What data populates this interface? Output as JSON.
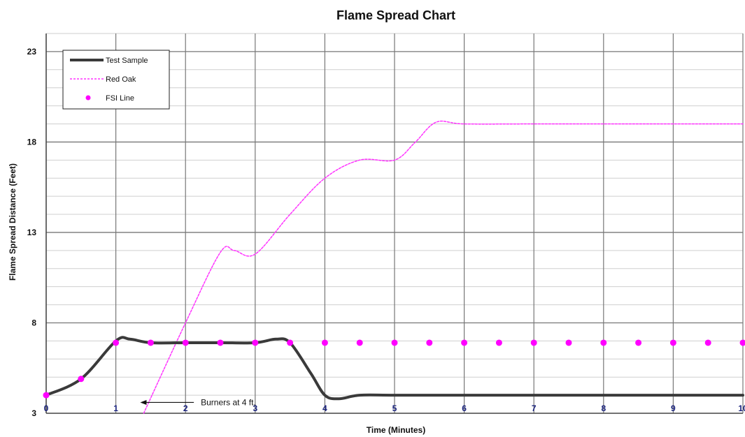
{
  "chart_data": {
    "type": "line",
    "title": "Flame Spread Chart",
    "xlabel": "Time (Minutes)",
    "ylabel": "Flame Spread Distance (Feet)",
    "xlim": [
      0,
      10
    ],
    "ylim": [
      3,
      24
    ],
    "x_ticks": [
      "0",
      "1",
      "2",
      "3",
      "4",
      "5",
      "6",
      "7",
      "8",
      "9",
      "10"
    ],
    "y_ticks": [
      "3",
      "8",
      "13",
      "18",
      "23"
    ],
    "grid": true,
    "legend_position": "top-left",
    "series": [
      {
        "name": "Test Sample",
        "style": "solid",
        "color": "#3a3a3a",
        "x": [
          0,
          0.5,
          1,
          1.2,
          1.5,
          2,
          2.5,
          3,
          3.3,
          3.5,
          3.8,
          4,
          4.2,
          4.5,
          5,
          6,
          7,
          8,
          9,
          10
        ],
        "y": [
          4.0,
          4.9,
          7.0,
          7.1,
          6.9,
          6.9,
          6.9,
          6.9,
          7.1,
          6.9,
          5.2,
          4.0,
          3.8,
          4.0,
          4.0,
          4.0,
          4.0,
          4.0,
          4.0,
          4.0
        ]
      },
      {
        "name": "Red Oak",
        "style": "dashed",
        "color": "#ff33ff",
        "x": [
          1.4,
          2,
          2.5,
          2.7,
          3,
          3.5,
          4,
          4.5,
          5,
          5.3,
          5.6,
          6,
          7,
          8,
          9,
          10
        ],
        "y": [
          3.0,
          8.0,
          11.9,
          12.0,
          11.8,
          14.0,
          16.0,
          17.0,
          17.0,
          18.0,
          19.1,
          19.0,
          19.0,
          19.0,
          19.0,
          19.0
        ]
      },
      {
        "name": "FSI Line",
        "style": "markers",
        "color": "#ff00ff",
        "x": [
          0,
          0.5,
          1,
          1.5,
          2,
          2.5,
          3,
          3.5,
          4,
          4.5,
          5,
          5.5,
          6,
          6.5,
          7,
          7.5,
          8,
          8.5,
          9,
          9.5,
          10
        ],
        "y": [
          4.0,
          4.9,
          6.9,
          6.9,
          6.9,
          6.9,
          6.9,
          6.9,
          6.9,
          6.9,
          6.9,
          6.9,
          6.9,
          6.9,
          6.9,
          6.9,
          6.9,
          6.9,
          6.9,
          6.9,
          6.9
        ]
      }
    ],
    "annotations": [
      {
        "text": "Burners at 4 ft.",
        "x": 2.2,
        "y": 3.6,
        "arrow_to_x": 1.35
      }
    ]
  }
}
